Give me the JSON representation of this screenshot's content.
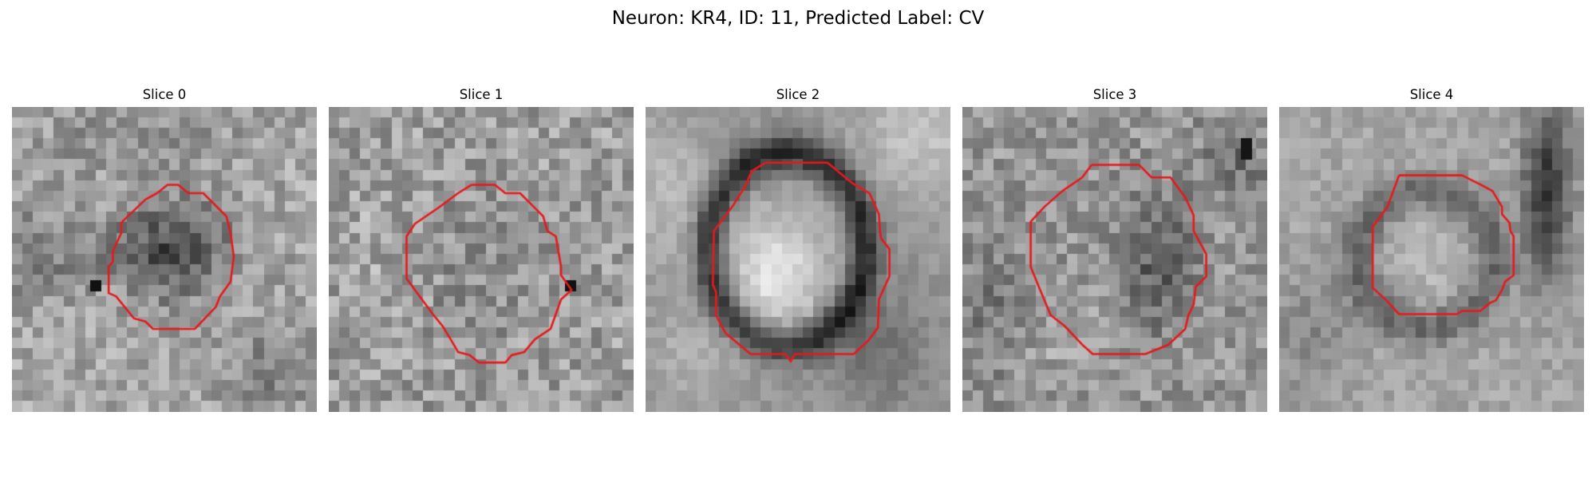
{
  "figure": {
    "title": "Neuron: KR4, ID: 11, Predicted Label: CV",
    "contour_color": "#e8191c",
    "colormap": "gray",
    "panels": [
      {
        "title": "Slice 0",
        "image_desc": "noisy grayscale patch with a darker blob centered slightly left of middle"
      },
      {
        "title": "Slice 1",
        "image_desc": "noisy mid-gray patch with a faint lighter ring"
      },
      {
        "title": "Slice 2",
        "image_desc": "bright oval cell body surrounded by a dark rim, lighter corners"
      },
      {
        "title": "Slice 3",
        "image_desc": "mottled patch with a dark patch on the right side of the contour"
      },
      {
        "title": "Slice 4",
        "image_desc": "smooth patch with a dark vertical band at the right edge"
      }
    ]
  }
}
